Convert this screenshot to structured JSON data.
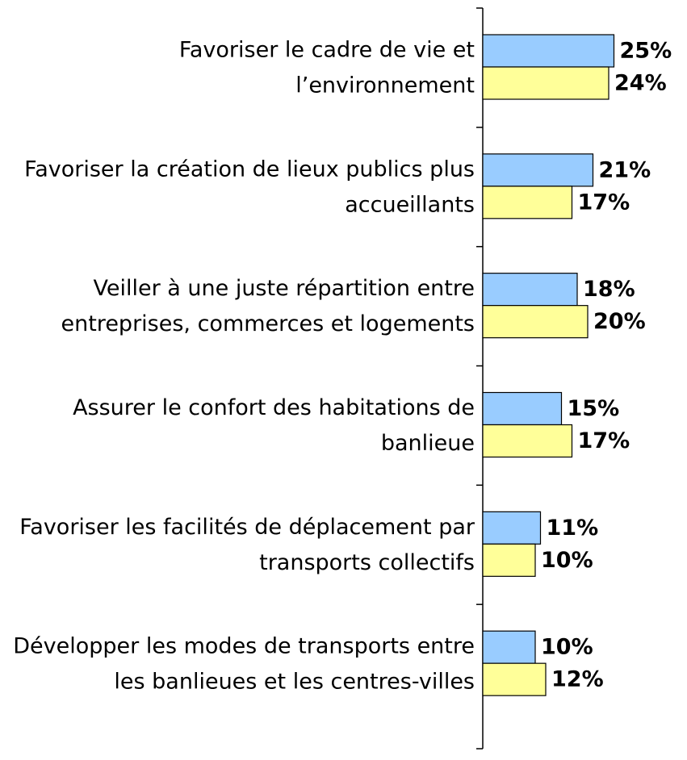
{
  "chart_data": {
    "type": "bar",
    "orientation": "horizontal",
    "categories": [
      [
        "Favoriser le cadre de vie et",
        "l’environnement"
      ],
      [
        "Favoriser la création de lieux publics plus",
        "accueillants"
      ],
      [
        "Veiller à une juste répartition entre",
        "entreprises, commerces et logements"
      ],
      [
        "Assurer le confort des habitations de",
        "banlieue"
      ],
      [
        "Favoriser les facilités de déplacement par",
        "transports collectifs"
      ],
      [
        "Développer les modes de transports entre",
        "les banlieues et les centres-villes"
      ]
    ],
    "series": [
      {
        "color": "#99ccff",
        "values": [
          25,
          21,
          18,
          15,
          11,
          10
        ],
        "value_labels": [
          "25%",
          "21%",
          "18%",
          "15%",
          "11%",
          "10%"
        ]
      },
      {
        "color": "#ffff99",
        "values": [
          24,
          17,
          20,
          17,
          10,
          12
        ],
        "value_labels": [
          "24%",
          "17%",
          "20%",
          "17%",
          "10%",
          "12%"
        ]
      }
    ],
    "xlim": [
      0,
      30
    ]
  }
}
